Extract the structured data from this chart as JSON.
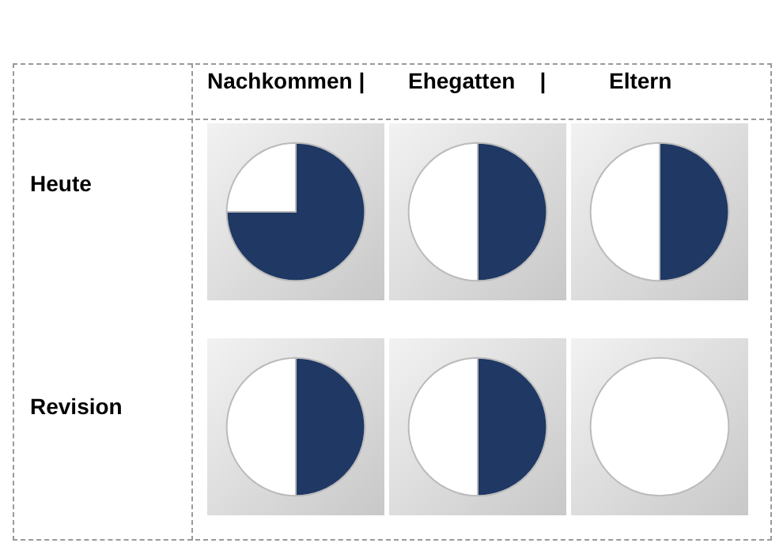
{
  "chart_data": [
    {
      "type": "other",
      "annotations": [
        "Nachkommen |",
        "Ehegatten    |",
        "Eltern",
        "Heute",
        "Revision"
      ]
    },
    {
      "type": "pie",
      "categories": [
        null,
        null
      ],
      "values": [
        75,
        25
      ],
      "colors": [
        "#1f3864",
        "#ffffff"
      ]
    },
    {
      "type": "pie",
      "categories": [
        null,
        null
      ],
      "values": [
        50,
        50
      ],
      "colors": [
        "#1f3864",
        "#ffffff"
      ]
    },
    {
      "type": "pie",
      "categories": [
        null,
        null
      ],
      "values": [
        50,
        50
      ],
      "colors": [
        "#1f3864",
        "#ffffff"
      ]
    },
    {
      "type": "pie",
      "categories": [
        null,
        null
      ],
      "values": [
        50,
        50
      ],
      "colors": [
        "#1f3864",
        "#ffffff"
      ]
    },
    {
      "type": "pie",
      "categories": [
        null,
        null
      ],
      "values": [
        50,
        50
      ],
      "colors": [
        "#1f3864",
        "#ffffff"
      ]
    },
    {
      "type": "pie",
      "categories": [
        null,
        null
      ],
      "values": [
        0,
        100
      ],
      "colors": [
        "#1f3864",
        "#ffffff"
      ]
    }
  ]
}
